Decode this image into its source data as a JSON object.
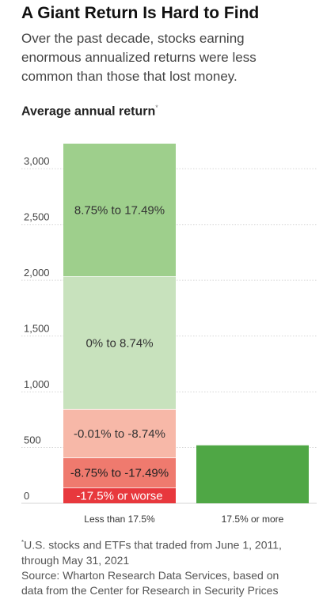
{
  "header": {
    "title": "A Giant Return Is Hard to Find",
    "subtitle_lines": [
      "Over the past decade, stocks earning",
      "enormous annualized returns were less",
      "common than those that lost money."
    ],
    "chart_title": "Average annual return",
    "chart_title_marker": "*"
  },
  "chart_data": {
    "type": "bar",
    "stacked": true,
    "title": "Average annual return",
    "categories": [
      "Less than 17.5%",
      "17.5% or more"
    ],
    "ylim": [
      0,
      3250
    ],
    "yticks": [
      0,
      500,
      1000,
      1500,
      2000,
      2500,
      3000
    ],
    "ytick_labels": [
      "0",
      "500",
      "1,000",
      "1,500",
      "2,000",
      "2,500",
      "3,000"
    ],
    "grid": true,
    "series": [
      {
        "name": "-17.5% or worse",
        "color": "#e8383d",
        "text_color": "#ffffff",
        "values": [
          140,
          0
        ]
      },
      {
        "name": "-8.75% to -17.49%",
        "color": "#ef7a6e",
        "text_color": "#222222",
        "values": [
          270,
          0
        ]
      },
      {
        "name": "-0.01% to -8.74%",
        "color": "#f7b8a8",
        "text_color": "#333333",
        "values": [
          435,
          0
        ]
      },
      {
        "name": "0% to 8.74%",
        "color": "#c8e2bd",
        "text_color": "#333333",
        "values": [
          1190,
          0
        ]
      },
      {
        "name": "8.75% to 17.49%",
        "color": "#9ecf8c",
        "text_color": "#333333",
        "values": [
          1195,
          0
        ]
      },
      {
        "name": "17.5% or more",
        "color": "#4fa745",
        "text_color": "#ffffff",
        "values": [
          0,
          525
        ],
        "show_label": false
      }
    ]
  },
  "footnote": {
    "marker": "*",
    "lines": [
      "U.S. stocks and ETFs that traded from June 1, 2011,",
      "through May 31, 2021",
      "Source: Wharton Research Data Services, based on",
      "data from the Center for Research in Security Prices"
    ]
  }
}
